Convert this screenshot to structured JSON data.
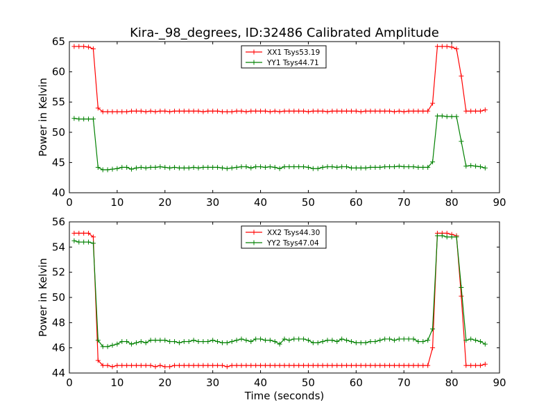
{
  "title": "Kira-_98_degrees, ID:32486 Calibrated Amplitude",
  "xlabel": "Time (seconds)",
  "colors": {
    "red": "#ff0000",
    "green": "#008000"
  },
  "chart_data": [
    {
      "type": "line",
      "title": "Kira-_98_degrees, ID:32486 Calibrated Amplitude",
      "xlabel": "",
      "ylabel": "Power in Kelvin",
      "xlim": [
        0,
        90
      ],
      "ylim": [
        40,
        65
      ],
      "xticks": [
        0,
        10,
        20,
        30,
        40,
        50,
        60,
        70,
        80,
        90
      ],
      "yticks": [
        40,
        45,
        50,
        55,
        60,
        65
      ],
      "grid": false,
      "legend_position": "top-center",
      "series": [
        {
          "name": "XX1 Tsys53.19",
          "color": "#ff0000",
          "x": [
            1,
            2,
            3,
            4,
            5,
            6,
            7,
            8,
            9,
            10,
            11,
            12,
            13,
            14,
            15,
            16,
            17,
            18,
            19,
            20,
            21,
            22,
            23,
            24,
            25,
            26,
            27,
            28,
            29,
            30,
            31,
            32,
            33,
            34,
            35,
            36,
            37,
            38,
            39,
            40,
            41,
            42,
            43,
            44,
            45,
            46,
            47,
            48,
            49,
            50,
            51,
            52,
            53,
            54,
            55,
            56,
            57,
            58,
            59,
            60,
            61,
            62,
            63,
            64,
            65,
            66,
            67,
            68,
            69,
            70,
            71,
            72,
            73,
            74,
            75,
            76,
            77,
            78,
            79,
            80,
            81,
            82,
            83,
            84,
            85,
            86,
            87
          ],
          "values": [
            64.2,
            64.2,
            64.2,
            64.1,
            63.8,
            54.0,
            53.4,
            53.4,
            53.4,
            53.4,
            53.4,
            53.4,
            53.5,
            53.5,
            53.5,
            53.4,
            53.5,
            53.4,
            53.5,
            53.5,
            53.4,
            53.5,
            53.5,
            53.5,
            53.5,
            53.5,
            53.5,
            53.4,
            53.5,
            53.5,
            53.5,
            53.4,
            53.4,
            53.4,
            53.5,
            53.5,
            53.4,
            53.5,
            53.5,
            53.5,
            53.5,
            53.4,
            53.5,
            53.4,
            53.5,
            53.5,
            53.5,
            53.5,
            53.5,
            53.4,
            53.5,
            53.5,
            53.5,
            53.4,
            53.5,
            53.5,
            53.5,
            53.5,
            53.5,
            53.5,
            53.4,
            53.5,
            53.5,
            53.5,
            53.5,
            53.5,
            53.5,
            53.4,
            53.5,
            53.4,
            53.5,
            53.5,
            53.5,
            53.5,
            53.5,
            54.8,
            64.2,
            64.2,
            64.2,
            64.1,
            63.8,
            59.3,
            53.5,
            53.5,
            53.5,
            53.5,
            53.7
          ]
        },
        {
          "name": "YY1 Tsys44.71",
          "color": "#008000",
          "x": [
            1,
            2,
            3,
            4,
            5,
            6,
            7,
            8,
            9,
            10,
            11,
            12,
            13,
            14,
            15,
            16,
            17,
            18,
            19,
            20,
            21,
            22,
            23,
            24,
            25,
            26,
            27,
            28,
            29,
            30,
            31,
            32,
            33,
            34,
            35,
            36,
            37,
            38,
            39,
            40,
            41,
            42,
            43,
            44,
            45,
            46,
            47,
            48,
            49,
            50,
            51,
            52,
            53,
            54,
            55,
            56,
            57,
            58,
            59,
            60,
            61,
            62,
            63,
            64,
            65,
            66,
            67,
            68,
            69,
            70,
            71,
            72,
            73,
            74,
            75,
            76,
            77,
            78,
            79,
            80,
            81,
            82,
            83,
            84,
            85,
            86,
            87
          ],
          "values": [
            52.3,
            52.2,
            52.2,
            52.2,
            52.2,
            44.2,
            43.8,
            43.8,
            43.9,
            44.0,
            44.2,
            44.2,
            43.9,
            44.1,
            44.2,
            44.1,
            44.2,
            44.2,
            44.3,
            44.2,
            44.1,
            44.2,
            44.1,
            44.1,
            44.1,
            44.2,
            44.1,
            44.2,
            44.2,
            44.2,
            44.2,
            44.1,
            44.0,
            44.1,
            44.2,
            44.3,
            44.3,
            44.1,
            44.3,
            44.3,
            44.2,
            44.3,
            44.2,
            44.0,
            44.3,
            44.3,
            44.3,
            44.3,
            44.3,
            44.2,
            44.0,
            44.0,
            44.2,
            44.3,
            44.3,
            44.2,
            44.3,
            44.3,
            44.1,
            44.1,
            44.1,
            44.1,
            44.2,
            44.2,
            44.2,
            44.3,
            44.3,
            44.3,
            44.4,
            44.3,
            44.3,
            44.3,
            44.2,
            44.2,
            44.2,
            45.1,
            52.7,
            52.7,
            52.6,
            52.6,
            52.6,
            48.5,
            44.4,
            44.5,
            44.4,
            44.3,
            44.1
          ]
        }
      ]
    },
    {
      "type": "line",
      "title": "",
      "xlabel": "Time (seconds)",
      "ylabel": "Power in Kelvin",
      "xlim": [
        0,
        90
      ],
      "ylim": [
        44,
        56
      ],
      "xticks": [
        0,
        10,
        20,
        30,
        40,
        50,
        60,
        70,
        80,
        90
      ],
      "yticks": [
        44,
        46,
        48,
        50,
        52,
        54,
        56
      ],
      "grid": false,
      "legend_position": "top-center",
      "series": [
        {
          "name": "XX2 Tsys44.30",
          "color": "#ff0000",
          "x": [
            1,
            2,
            3,
            4,
            5,
            6,
            7,
            8,
            9,
            10,
            11,
            12,
            13,
            14,
            15,
            16,
            17,
            18,
            19,
            20,
            21,
            22,
            23,
            24,
            25,
            26,
            27,
            28,
            29,
            30,
            31,
            32,
            33,
            34,
            35,
            36,
            37,
            38,
            39,
            40,
            41,
            42,
            43,
            44,
            45,
            46,
            47,
            48,
            49,
            50,
            51,
            52,
            53,
            54,
            55,
            56,
            57,
            58,
            59,
            60,
            61,
            62,
            63,
            64,
            65,
            66,
            67,
            68,
            69,
            70,
            71,
            72,
            73,
            74,
            75,
            76,
            77,
            78,
            79,
            80,
            81,
            82,
            83,
            84,
            85,
            86,
            87
          ],
          "values": [
            55.1,
            55.1,
            55.1,
            55.1,
            54.8,
            45.0,
            44.6,
            44.6,
            44.5,
            44.6,
            44.6,
            44.6,
            44.6,
            44.6,
            44.6,
            44.6,
            44.6,
            44.5,
            44.6,
            44.5,
            44.5,
            44.6,
            44.6,
            44.6,
            44.6,
            44.6,
            44.6,
            44.6,
            44.6,
            44.6,
            44.6,
            44.6,
            44.5,
            44.6,
            44.6,
            44.6,
            44.6,
            44.6,
            44.6,
            44.6,
            44.6,
            44.6,
            44.6,
            44.6,
            44.6,
            44.6,
            44.6,
            44.6,
            44.6,
            44.6,
            44.6,
            44.6,
            44.6,
            44.6,
            44.6,
            44.6,
            44.6,
            44.6,
            44.6,
            44.6,
            44.6,
            44.6,
            44.6,
            44.6,
            44.6,
            44.6,
            44.6,
            44.6,
            44.6,
            44.6,
            44.6,
            44.6,
            44.6,
            44.6,
            44.6,
            46.0,
            55.1,
            55.1,
            55.1,
            55.0,
            54.9,
            50.1,
            44.6,
            44.6,
            44.6,
            44.6,
            44.7
          ]
        },
        {
          "name": "YY2 Tsys47.04",
          "color": "#008000",
          "x": [
            1,
            2,
            3,
            4,
            5,
            6,
            7,
            8,
            9,
            10,
            11,
            12,
            13,
            14,
            15,
            16,
            17,
            18,
            19,
            20,
            21,
            22,
            23,
            24,
            25,
            26,
            27,
            28,
            29,
            30,
            31,
            32,
            33,
            34,
            35,
            36,
            37,
            38,
            39,
            40,
            41,
            42,
            43,
            44,
            45,
            46,
            47,
            48,
            49,
            50,
            51,
            52,
            53,
            54,
            55,
            56,
            57,
            58,
            59,
            60,
            61,
            62,
            63,
            64,
            65,
            66,
            67,
            68,
            69,
            70,
            71,
            72,
            73,
            74,
            75,
            76,
            77,
            78,
            79,
            80,
            81,
            82,
            83,
            84,
            85,
            86,
            87
          ],
          "values": [
            54.5,
            54.4,
            54.4,
            54.4,
            54.3,
            46.6,
            46.1,
            46.1,
            46.2,
            46.3,
            46.5,
            46.5,
            46.3,
            46.4,
            46.5,
            46.4,
            46.6,
            46.6,
            46.6,
            46.6,
            46.5,
            46.5,
            46.4,
            46.5,
            46.5,
            46.6,
            46.5,
            46.5,
            46.5,
            46.6,
            46.5,
            46.4,
            46.4,
            46.5,
            46.6,
            46.7,
            46.6,
            46.5,
            46.7,
            46.7,
            46.6,
            46.6,
            46.5,
            46.3,
            46.7,
            46.6,
            46.7,
            46.7,
            46.7,
            46.6,
            46.4,
            46.4,
            46.5,
            46.6,
            46.6,
            46.5,
            46.7,
            46.6,
            46.5,
            46.4,
            46.4,
            46.4,
            46.5,
            46.5,
            46.6,
            46.7,
            46.7,
            46.6,
            46.7,
            46.7,
            46.7,
            46.7,
            46.5,
            46.5,
            46.6,
            47.5,
            54.9,
            54.9,
            54.8,
            54.8,
            54.8,
            50.8,
            46.6,
            46.7,
            46.6,
            46.5,
            46.3
          ]
        }
      ]
    }
  ]
}
